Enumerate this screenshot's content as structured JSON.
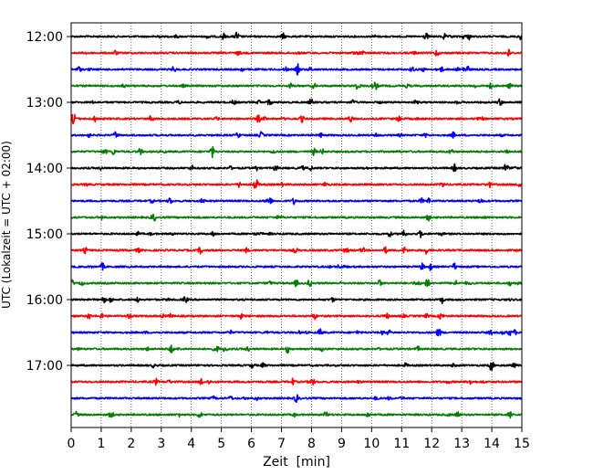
{
  "chart_data": {
    "type": "line",
    "title": "",
    "xlabel": "Zeit  [min]",
    "ylabel": "UTC (Lokalzeit = UTC + 02:00)",
    "xlim": [
      0,
      15
    ],
    "xticks": [
      0,
      1,
      2,
      3,
      4,
      5,
      6,
      7,
      8,
      9,
      10,
      11,
      12,
      13,
      14,
      15
    ],
    "xtick_labels": [
      "0",
      "1",
      "2",
      "3",
      "4",
      "5",
      "6",
      "7",
      "8",
      "9",
      "10",
      "11",
      "12",
      "13",
      "14",
      "15"
    ],
    "yticks": [
      "12:00",
      "13:00",
      "14:00",
      "15:00",
      "16:00",
      "17:00"
    ],
    "grid": "vertical dotted at each minute",
    "trace_start_utc": [
      "12:00",
      "12:15",
      "12:30",
      "12:45",
      "13:00",
      "13:15",
      "13:30",
      "13:45",
      "14:00",
      "14:15",
      "14:30",
      "14:45",
      "15:00",
      "15:15",
      "15:30",
      "15:45",
      "16:00",
      "16:15",
      "16:30",
      "16:45",
      "17:00",
      "17:15",
      "17:30",
      "17:45"
    ],
    "trace_colors": [
      "#000000",
      "#ff0000",
      "#0000ff",
      "#008000"
    ]
  }
}
